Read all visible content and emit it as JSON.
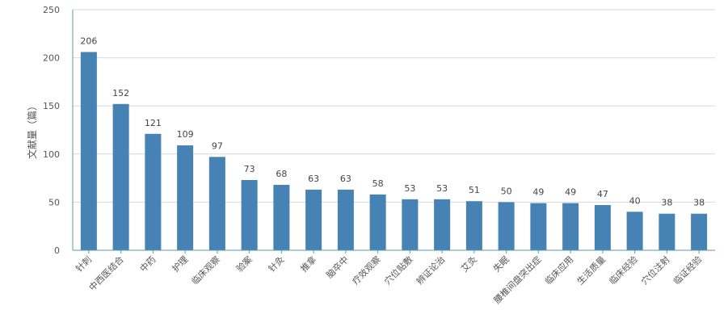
{
  "chart_data": {
    "type": "bar",
    "ylabel": "文献量（篇）",
    "xlabel": "",
    "title": "",
    "ylim": [
      0,
      250
    ],
    "yticks": [
      0,
      50,
      100,
      150,
      200,
      250
    ],
    "grid": true,
    "categories": [
      "针刺",
      "中西医结合",
      "中药",
      "护理",
      "临床观察",
      "验案",
      "针灸",
      "推拿",
      "脑卒中",
      "疗效观察",
      "穴位贴敷",
      "辨证论治",
      "艾灸",
      "失眠",
      "腰椎间盘突出症",
      "临床应用",
      "生活质量",
      "临床经验",
      "穴位注射",
      "临证经验"
    ],
    "values": [
      206,
      152,
      121,
      109,
      97,
      73,
      68,
      63,
      63,
      58,
      53,
      53,
      51,
      50,
      49,
      49,
      47,
      40,
      38,
      38
    ],
    "colors": {
      "bar": "#4682b4",
      "grid": "#d9d9d9",
      "axis": "#5b9ea0"
    }
  }
}
